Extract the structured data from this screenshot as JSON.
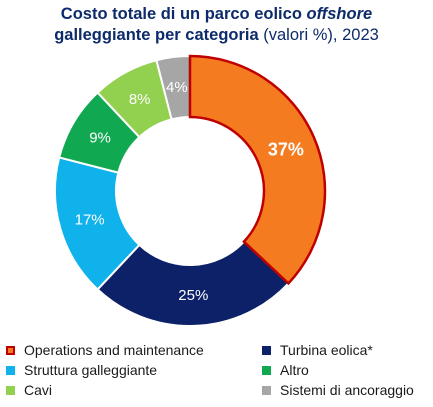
{
  "title": {
    "part1": "Costo totale di un parco eolico ",
    "part2": "offshore",
    "part3": "galleggiante per categoria",
    "part4": " (valori %), 2023"
  },
  "chart_data": {
    "type": "pie",
    "donut": true,
    "start_angle_deg": 0,
    "direction": "clockwise",
    "labels": [
      "Operations and maintenance",
      "Turbina eolica*",
      "Struttura galleggiante",
      "Altro",
      "Cavi",
      "Sistemi di ancoraggio"
    ],
    "values": [
      37,
      25,
      17,
      9,
      8,
      4
    ],
    "value_labels": [
      "37%",
      "25%",
      "17%",
      "9%",
      "8%",
      "4%"
    ],
    "colors": [
      "#f47b20",
      "#0c2168",
      "#0fb2ea",
      "#11a852",
      "#92d050",
      "#a6a6a6"
    ],
    "label_colors": [
      "#ffffff",
      "#ffffff",
      "#ffffff",
      "#ffffff",
      "#ffffff",
      "#ffffff"
    ],
    "highlight_index": 0,
    "highlight_border": "#c00000",
    "legend_placement": "bottom"
  },
  "legend": {
    "items": [
      {
        "label": "Operations and maintenance",
        "color": "#f47b20",
        "border": "#c00000"
      },
      {
        "label": "Turbina eolica*",
        "color": "#0c2168",
        "border": ""
      },
      {
        "label": "Struttura galleggiante",
        "color": "#0fb2ea",
        "border": ""
      },
      {
        "label": "Altro",
        "color": "#11a852",
        "border": ""
      },
      {
        "label": "Cavi",
        "color": "#92d050",
        "border": ""
      },
      {
        "label": "Sistemi di ancoraggio",
        "color": "#a6a6a6",
        "border": ""
      }
    ]
  }
}
